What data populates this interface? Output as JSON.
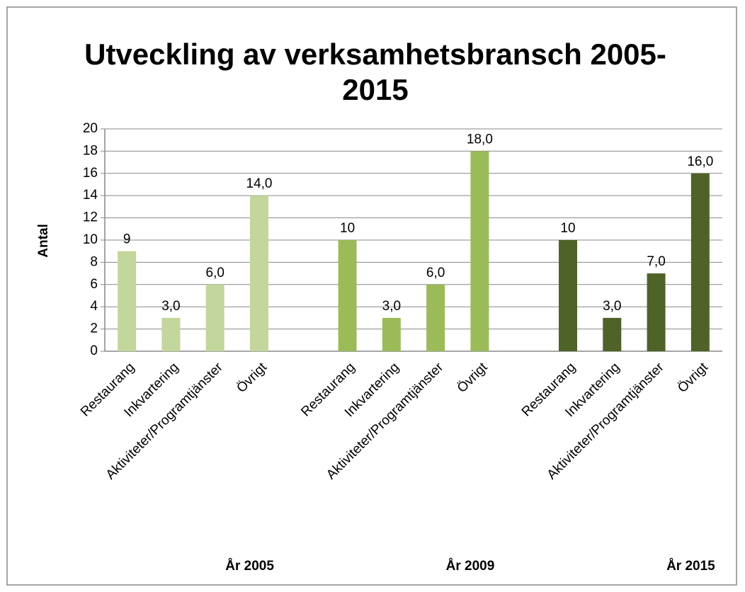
{
  "chart_data": {
    "type": "bar",
    "title": [
      "Utveckling av verksamhetsbransch  2005-",
      "2015"
    ],
    "y_label": "Antal",
    "categories": [
      "Restaurang",
      "Inkvartering",
      "Aktiviteter/Programtjänster",
      "Övrigt"
    ],
    "series": [
      {
        "name": "År 2005",
        "color": "#c3d69b",
        "values": [
          9,
          3,
          6,
          14
        ],
        "value_labels": [
          "9",
          "3,0",
          "6,0",
          "14,0"
        ]
      },
      {
        "name": "År 2009",
        "color": "#9bbb59",
        "values": [
          10,
          3,
          6,
          18
        ],
        "value_labels": [
          "10",
          "3,0",
          "6,0",
          "18,0"
        ]
      },
      {
        "name": "År 2015",
        "color": "#4f6228",
        "values": [
          10,
          3,
          7,
          16
        ],
        "value_labels": [
          "10",
          "3,0",
          "7,0",
          "16,0"
        ]
      }
    ],
    "ylim": [
      0,
      20
    ],
    "yticks": [
      0,
      2,
      4,
      6,
      8,
      10,
      12,
      14,
      16,
      18,
      20
    ],
    "grid": true
  }
}
